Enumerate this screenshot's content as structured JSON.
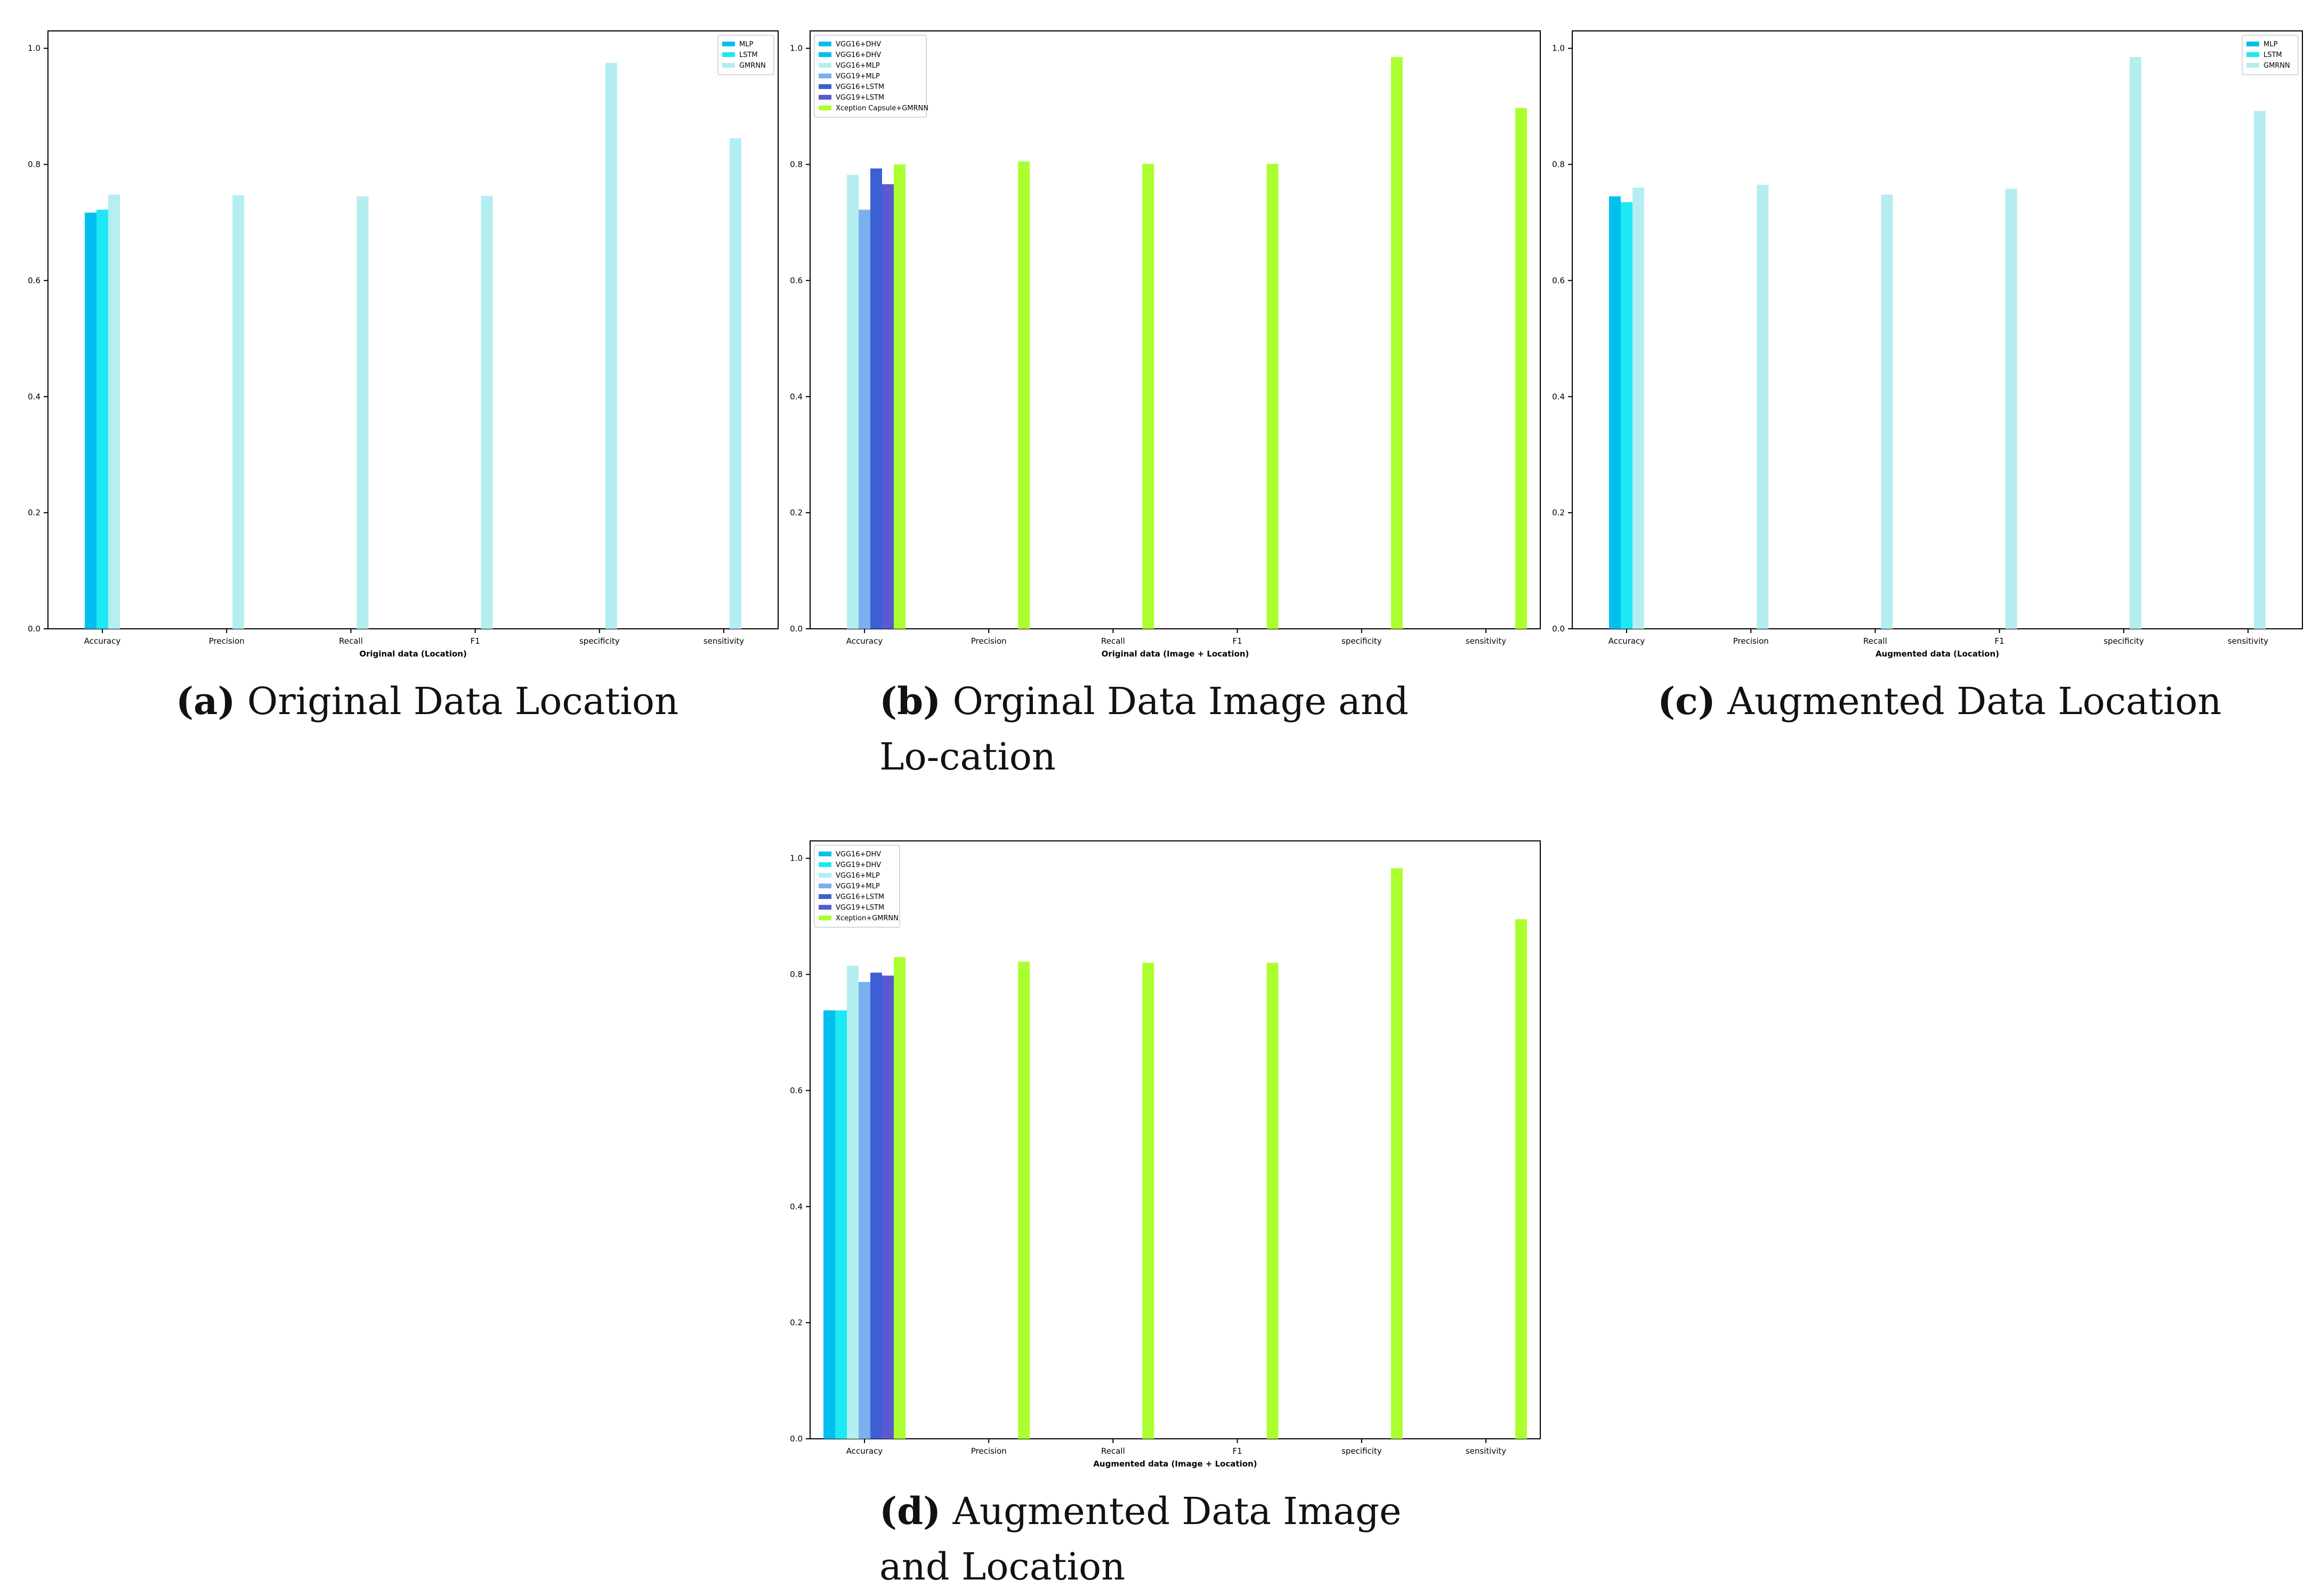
{
  "colors": {
    "VGG16+DHV": "#00bfee",
    "VGG19+DHV": "#1ee8f4",
    "VGG16+MLP": "#b4eef0",
    "VGG19+MLP": "#7aaff0",
    "VGG16+LSTM": "#3d5fd4",
    "VGG19+LSTM": "#5a5ad0",
    "Xception Capsule+GMRNN": "#acff2f",
    "MLP": "#00bfee",
    "LSTM": "#1ee8f4",
    "GMRNN": "#b4eef0"
  },
  "captions": [
    {
      "tag": "(a)",
      "text": "Original Data Location"
    },
    {
      "tag": "(b)",
      "text": "Orginal Data Image and Lo-cation"
    },
    {
      "tag": "(c)",
      "text": "Augmented Data Location"
    },
    {
      "tag": "(d)",
      "text": "Augmented Data Image and Location"
    }
  ],
  "chart_data": [
    {
      "type": "bar",
      "title": "",
      "xlabel": "Original data (Location)",
      "ylabel": "",
      "ylim": [
        0,
        1.03
      ],
      "yticks": [
        "0.0",
        "0.2",
        "0.4",
        "0.6",
        "0.8",
        "1.0"
      ],
      "categories": [
        "Accuracy",
        "Precision",
        "Recall",
        "F1",
        "specificity",
        "sensitivity"
      ],
      "legend_position": "top-right",
      "series": [
        {
          "name": "MLP",
          "values": [
            0.717,
            0,
            0,
            0,
            0,
            0
          ]
        },
        {
          "name": "LSTM",
          "values": [
            0.722,
            0,
            0,
            0,
            0,
            0
          ]
        },
        {
          "name": "GMRNN",
          "values": [
            0.748,
            0.747,
            0.745,
            0.746,
            0.975,
            0.845
          ]
        }
      ]
    },
    {
      "type": "bar",
      "title": "",
      "xlabel": "Original data (Image + Location)",
      "ylabel": "",
      "ylim": [
        0,
        1.03
      ],
      "yticks": [
        "0.0",
        "0.2",
        "0.4",
        "0.6",
        "0.8",
        "1.0"
      ],
      "categories": [
        "Accuracy",
        "Precision",
        "Recall",
        "F1",
        "specificity",
        "sensitivity"
      ],
      "legend_position": "top-left",
      "series": [
        {
          "name": "VGG16+DHV",
          "values": [
            0,
            0,
            0,
            0,
            0,
            0
          ]
        },
        {
          "name": "VGG16+DHV",
          "values": [
            0,
            0,
            0,
            0,
            0,
            0
          ]
        },
        {
          "name": "VGG16+MLP",
          "values": [
            0.782,
            0,
            0,
            0,
            0,
            0
          ]
        },
        {
          "name": "VGG19+MLP",
          "values": [
            0.722,
            0,
            0,
            0,
            0,
            0
          ]
        },
        {
          "name": "VGG16+LSTM",
          "values": [
            0.793,
            0,
            0,
            0,
            0,
            0
          ]
        },
        {
          "name": "VGG19+LSTM",
          "values": [
            0.766,
            0,
            0,
            0,
            0,
            0
          ]
        },
        {
          "name": "Xception Capsule+GMRNN",
          "values": [
            0.8,
            0.805,
            0.801,
            0.801,
            0.985,
            0.897
          ]
        }
      ]
    },
    {
      "type": "bar",
      "title": "",
      "xlabel": "Augmented data (Location)",
      "ylabel": "",
      "ylim": [
        0,
        1.03
      ],
      "yticks": [
        "0.0",
        "0.2",
        "0.4",
        "0.6",
        "0.8",
        "1.0"
      ],
      "categories": [
        "Accuracy",
        "Precision",
        "Recall",
        "F1",
        "specificity",
        "sensitivity"
      ],
      "legend_position": "top-right",
      "series": [
        {
          "name": "MLP",
          "values": [
            0.745,
            0,
            0,
            0,
            0,
            0
          ]
        },
        {
          "name": "LSTM",
          "values": [
            0.735,
            0,
            0,
            0,
            0,
            0
          ]
        },
        {
          "name": "GMRNN",
          "values": [
            0.76,
            0.765,
            0.748,
            0.758,
            0.985,
            0.892
          ]
        }
      ]
    },
    {
      "type": "bar",
      "title": "",
      "xlabel": "Augmented data (Image + Location)",
      "ylabel": "",
      "ylim": [
        0,
        1.03
      ],
      "yticks": [
        "0.0",
        "0.2",
        "0.4",
        "0.6",
        "0.8",
        "1.0"
      ],
      "categories": [
        "Accuracy",
        "Precision",
        "Recall",
        "F1",
        "specificity",
        "sensitivity"
      ],
      "legend_position": "top-left",
      "series": [
        {
          "name": "VGG16+DHV",
          "values": [
            0.738,
            0,
            0,
            0,
            0,
            0
          ]
        },
        {
          "name": "VGG19+DHV",
          "values": [
            0.738,
            0,
            0,
            0,
            0,
            0
          ]
        },
        {
          "name": "VGG16+MLP",
          "values": [
            0.815,
            0,
            0,
            0,
            0,
            0
          ]
        },
        {
          "name": "VGG19+MLP",
          "values": [
            0.787,
            0,
            0,
            0,
            0,
            0
          ]
        },
        {
          "name": "VGG16+LSTM",
          "values": [
            0.803,
            0,
            0,
            0,
            0,
            0
          ]
        },
        {
          "name": "VGG19+LSTM",
          "values": [
            0.798,
            0,
            0,
            0,
            0,
            0
          ]
        },
        {
          "name": "Xception+GMRNN",
          "values": [
            0.83,
            0.822,
            0.82,
            0.82,
            0.983,
            0.895
          ]
        }
      ]
    }
  ]
}
